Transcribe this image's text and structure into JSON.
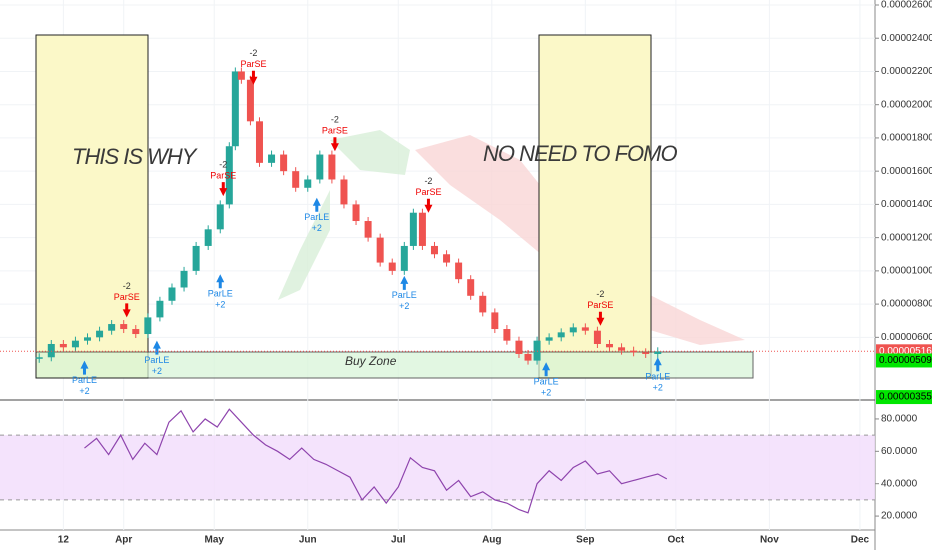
{
  "chart_data": {
    "type": "candlestick",
    "annotations": {
      "left": "THIS IS WHY",
      "right": "NO NEED TO FOMO",
      "zone": "Buy Zone"
    },
    "xlim": [
      -10,
      280
    ],
    "xticks": [
      {
        "value": 11,
        "label": "12"
      },
      {
        "value": 31,
        "label": "Apr"
      },
      {
        "value": 61,
        "label": "May"
      },
      {
        "value": 92,
        "label": "Jun"
      },
      {
        "value": 122,
        "label": "Jul"
      },
      {
        "value": 153,
        "label": "Aug"
      },
      {
        "value": 184,
        "label": "Sep"
      },
      {
        "value": 214,
        "label": "Oct"
      },
      {
        "value": 245,
        "label": "Nov"
      },
      {
        "value": 275,
        "label": "Dec"
      }
    ],
    "ylim": [
      2.35e-06,
      2.63e-05
    ],
    "yticks": [
      {
        "value": 2.6e-05,
        "label": "0.00002600"
      },
      {
        "value": 2.4e-05,
        "label": "0.00002400"
      },
      {
        "value": 2.2e-05,
        "label": "0.00002200"
      },
      {
        "value": 2e-05,
        "label": "0.00002000"
      },
      {
        "value": 1.8e-05,
        "label": "0.00001800"
      },
      {
        "value": 1.6e-05,
        "label": "0.00001600"
      },
      {
        "value": 1.4e-05,
        "label": "0.00001400"
      },
      {
        "value": 1.2e-05,
        "label": "0.00001200"
      },
      {
        "value": 1e-05,
        "label": "0.00001000"
      },
      {
        "value": 8e-06,
        "label": "0.00000800"
      },
      {
        "value": 6e-06,
        "label": "0.00000600"
      }
    ],
    "price_tags": [
      {
        "value": 5.16e-06,
        "label": "0.00000516",
        "color": "#ef5350"
      },
      {
        "value": 5.09e-06,
        "label": "0.00000509",
        "color": "#00e600"
      },
      {
        "value": 3.55e-06,
        "label": "0.00000355",
        "color": "#00e600"
      }
    ],
    "up_color": "#26a69a",
    "down_color": "#ef5350",
    "x": [
      3,
      7,
      11,
      15,
      19,
      23,
      27,
      31,
      35,
      39,
      43,
      47,
      51,
      55,
      59,
      63,
      66,
      68,
      70,
      73,
      76,
      80,
      84,
      88,
      92,
      96,
      100,
      104,
      108,
      112,
      116,
      120,
      124,
      127,
      130,
      134,
      138,
      142,
      146,
      150,
      154,
      158,
      162,
      165,
      168,
      172,
      176,
      180,
      184,
      188,
      192,
      196,
      200,
      204,
      208
    ],
    "values": [
      4.8e-06,
      5.6e-06,
      5.4e-06,
      5.8e-06,
      6e-06,
      6.4e-06,
      6.8e-06,
      6.5e-06,
      6.2e-06,
      7.2e-06,
      8.2e-06,
      9e-06,
      1e-05,
      1.15e-05,
      1.25e-05,
      1.4e-05,
      1.75e-05,
      2.2e-05,
      2.15e-05,
      1.9e-05,
      1.65e-05,
      1.7e-05,
      1.6e-05,
      1.5e-05,
      1.55e-05,
      1.7e-05,
      1.55e-05,
      1.4e-05,
      1.3e-05,
      1.2e-05,
      1.05e-05,
      1e-05,
      1.15e-05,
      1.35e-05,
      1.15e-05,
      1.1e-05,
      1.05e-05,
      9.5e-06,
      8.5e-06,
      7.5e-06,
      6.5e-06,
      5.8e-06,
      5e-06,
      4.6e-06,
      5.8e-06,
      6e-06,
      6.3e-06,
      6.6e-06,
      6.4e-06,
      5.6e-06,
      5.4e-06,
      5.2e-06,
      5.1e-06,
      5e-06,
      5.16e-06
    ],
    "signals": [
      {
        "label": "ParSE",
        "qty": "-2",
        "x": 32,
        "price": 7.2e-06
      },
      {
        "label": "ParSE",
        "qty": "-2",
        "x": 64,
        "price": 1.45e-05
      },
      {
        "label": "ParSE",
        "qty": "-2",
        "x": 74,
        "price": 2.12e-05
      },
      {
        "label": "ParSE",
        "qty": "-2",
        "x": 101,
        "price": 1.72e-05
      },
      {
        "label": "ParSE",
        "qty": "-2",
        "x": 132,
        "price": 1.35e-05
      },
      {
        "label": "ParSE",
        "qty": "-2",
        "x": 189,
        "price": 6.7e-06
      },
      {
        "label": "ParLE",
        "qty": "+2",
        "x": 18,
        "price": 4.6e-06
      },
      {
        "label": "ParLE",
        "qty": "+2",
        "x": 42,
        "price": 5.8e-06
      },
      {
        "label": "ParLE",
        "qty": "+2",
        "x": 63,
        "price": 9.8e-06
      },
      {
        "label": "ParLE",
        "qty": "+2",
        "x": 95,
        "price": 1.44e-05
      },
      {
        "label": "ParLE",
        "qty": "+2",
        "x": 124,
        "price": 9.7e-06
      },
      {
        "label": "ParLE",
        "qty": "+2",
        "x": 171,
        "price": 4.5e-06
      },
      {
        "label": "ParLE",
        "qty": "+2",
        "x": 208,
        "price": 4.8e-06
      }
    ],
    "rsi": {
      "color": "#8e44ad",
      "ylim": [
        11.4,
        91.7
      ],
      "yticks": [
        {
          "value": 80,
          "label": "80.0000"
        },
        {
          "value": 60,
          "label": "60.0000"
        },
        {
          "value": 40,
          "label": "40.0000"
        },
        {
          "value": 20,
          "label": "20.0000"
        }
      ],
      "band": [
        30,
        70
      ],
      "x": [
        18,
        22,
        26,
        30,
        34,
        38,
        42,
        46,
        50,
        54,
        58,
        62,
        66,
        70,
        74,
        78,
        82,
        86,
        90,
        94,
        98,
        102,
        106,
        110,
        114,
        118,
        122,
        126,
        130,
        134,
        138,
        142,
        146,
        150,
        154,
        158,
        162,
        165,
        168,
        172,
        176,
        180,
        184,
        188,
        192,
        196,
        200,
        204,
        208,
        211
      ],
      "values": [
        62,
        68,
        58,
        70,
        55,
        65,
        58,
        78,
        85,
        72,
        80,
        75,
        86,
        78,
        70,
        64,
        60,
        55,
        62,
        55,
        52,
        48,
        44,
        30,
        38,
        28,
        38,
        56,
        50,
        48,
        36,
        42,
        32,
        35,
        30,
        28,
        24,
        22,
        40,
        48,
        42,
        50,
        54,
        46,
        48,
        40,
        42,
        44,
        46,
        43
      ]
    }
  }
}
